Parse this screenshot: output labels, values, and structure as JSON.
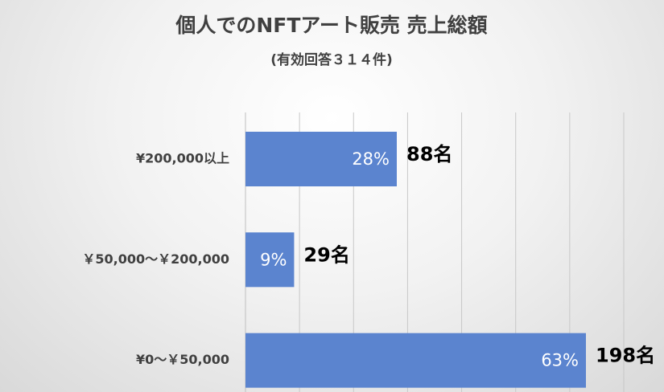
{
  "chart_data": {
    "type": "bar",
    "orientation": "horizontal",
    "title": "個人でのNFTアート販売 売上総額",
    "subtitle": "(有効回答３１４件)",
    "categories": [
      "¥200,000以上",
      "￥50,000～￥200,000",
      "¥0～￥50,000"
    ],
    "values": [
      28,
      9,
      63
    ],
    "value_labels": [
      "28%",
      "9%",
      "63%"
    ],
    "count_labels": [
      "88名",
      "29名",
      "198名"
    ],
    "color": "#5b84cf",
    "xlim": [
      0,
      70
    ],
    "xticks": [
      0,
      10,
      20,
      30,
      40,
      50,
      60,
      70
    ],
    "grid": true
  }
}
